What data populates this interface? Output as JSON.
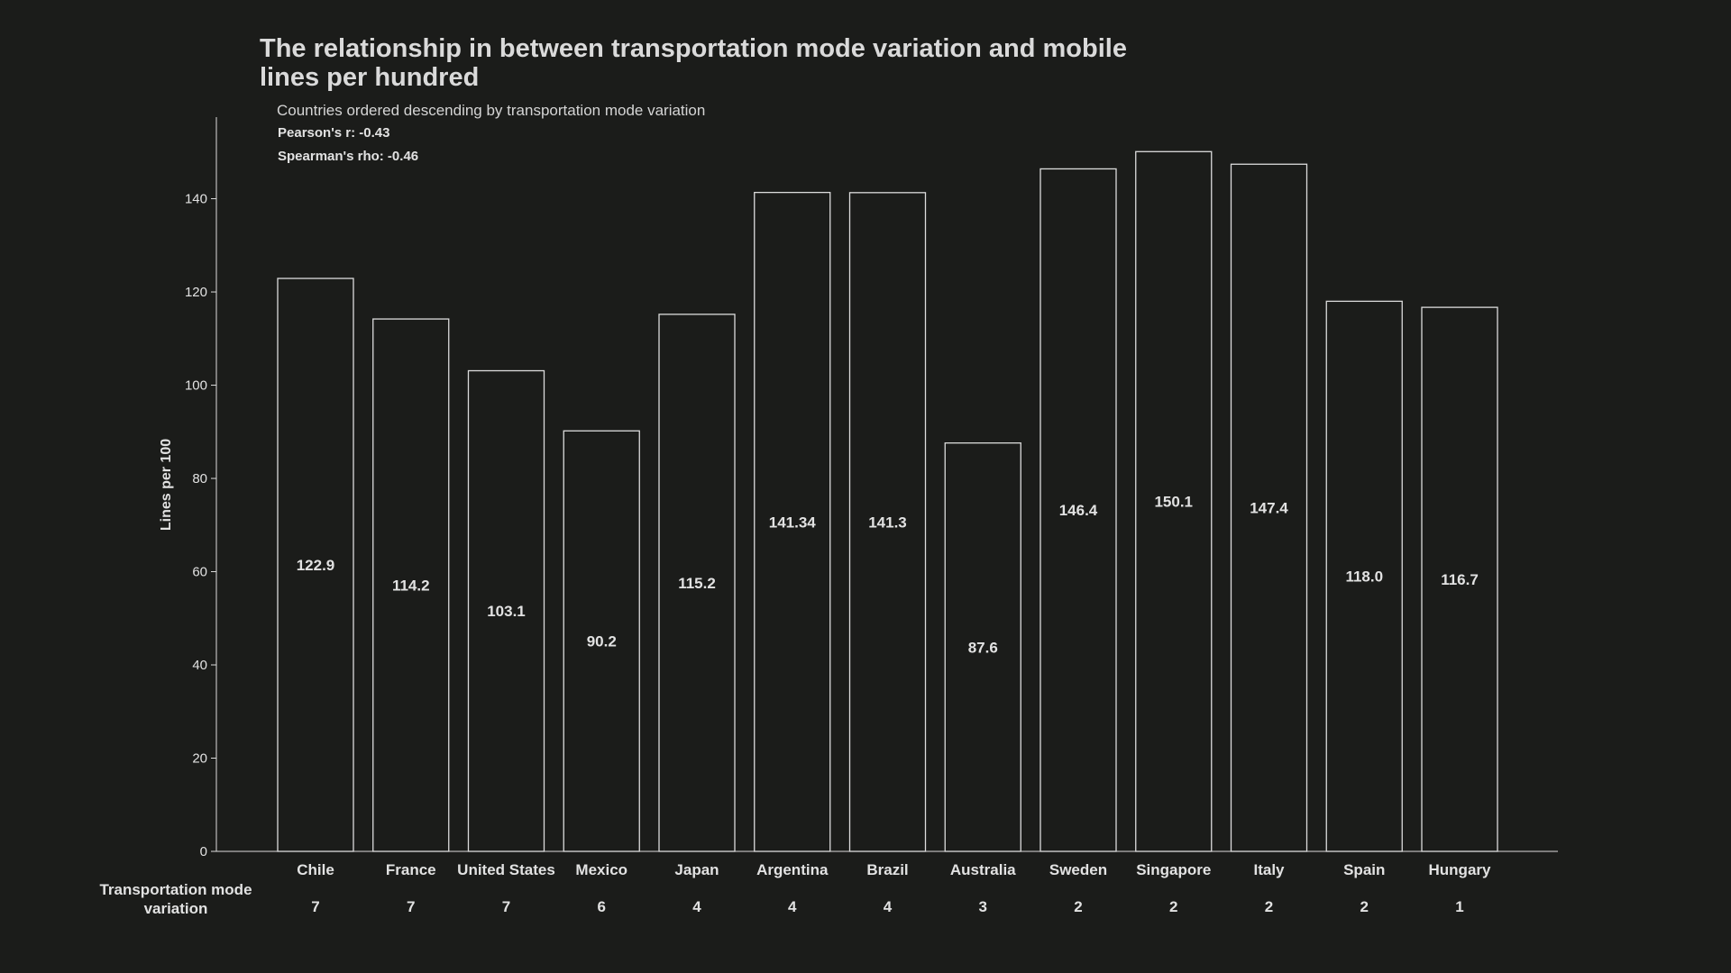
{
  "chart_data": {
    "type": "bar",
    "title": "The relationship in between transportation mode variation and mobile lines per hundred",
    "subtitle": "Countries ordered descending by transportation mode variation",
    "stats": {
      "pearson": "Pearson's r: -0.43",
      "spearman": "Spearman's rho: -0.46"
    },
    "ylabel": "Lines per 100",
    "row_label": "Transportation mode variation",
    "ylim": [
      0,
      157.5
    ],
    "yticks": [
      0,
      20,
      40,
      60,
      80,
      100,
      120,
      140
    ],
    "categories": [
      "Chile",
      "France",
      "United States",
      "Mexico",
      "Japan",
      "Argentina",
      "Brazil",
      "Australia",
      "Sweden",
      "Singapore",
      "Italy",
      "Spain",
      "Hungary"
    ],
    "values": [
      122.9,
      114.2,
      103.1,
      90.2,
      115.2,
      141.34,
      141.3,
      87.6,
      146.4,
      150.1,
      147.4,
      118.0,
      116.7
    ],
    "value_labels": [
      "122.9",
      "114.2",
      "103.1",
      "90.2",
      "115.2",
      "141.34",
      "141.3",
      "87.6",
      "146.4",
      "150.1",
      "147.4",
      "118.0",
      "116.7"
    ],
    "transport_variation": [
      7,
      7,
      7,
      6,
      4,
      4,
      4,
      3,
      2,
      2,
      2,
      2,
      1
    ],
    "grid": false,
    "colors": {
      "background": "#1b1c1a",
      "bar_fill": "#1b1c1a",
      "bar_stroke": "#dcdcdc",
      "text": "#e2e2e2"
    }
  }
}
